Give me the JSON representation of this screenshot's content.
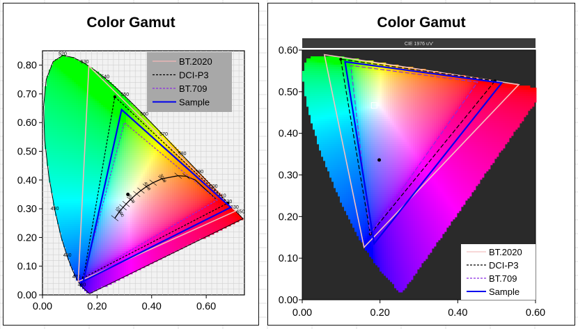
{
  "chart_data": [
    {
      "type": "scatter",
      "title": "Color Gamut",
      "xlim": [
        0,
        0.74
      ],
      "ylim": [
        0,
        0.85
      ],
      "x_ticks": [
        "0.00",
        "0.20",
        "0.40",
        "0.60"
      ],
      "y_ticks": [
        "0.00",
        "0.10",
        "0.20",
        "0.30",
        "0.40",
        "0.50",
        "0.60",
        "0.70",
        "0.80"
      ],
      "x_tick_values": [
        0,
        0.2,
        0.4,
        0.6
      ],
      "y_tick_values": [
        0,
        0.1,
        0.2,
        0.3,
        0.4,
        0.5,
        0.6,
        0.7,
        0.8
      ],
      "legend_position": "top-right",
      "grid": true,
      "series": [
        {
          "name": "BT.2020",
          "color": "#f4b8b8",
          "style": "solid",
          "points": [
            [
              0.708,
              0.292
            ],
            [
              0.17,
              0.797
            ],
            [
              0.131,
              0.046
            ]
          ]
        },
        {
          "name": "DCI-P3",
          "color": "#000000",
          "style": "dashed",
          "points": [
            [
              0.68,
              0.32
            ],
            [
              0.265,
              0.69
            ],
            [
              0.15,
              0.06
            ]
          ]
        },
        {
          "name": "BT.709",
          "color": "#8a2be2",
          "style": "dashed",
          "points": [
            [
              0.64,
              0.33
            ],
            [
              0.3,
              0.6
            ],
            [
              0.15,
              0.06
            ]
          ]
        },
        {
          "name": "Sample",
          "color": "#0000ee",
          "style": "solid",
          "points": [
            [
              0.69,
              0.305
            ],
            [
              0.29,
              0.645
            ],
            [
              0.15,
              0.048
            ]
          ]
        }
      ],
      "white_point": [
        0.313,
        0.35
      ],
      "wavelength_labels": [
        {
          "text": "460",
          "x": 0.144,
          "y": 0.03
        },
        {
          "text": "470",
          "x": 0.124,
          "y": 0.058
        },
        {
          "text": "480",
          "x": 0.091,
          "y": 0.133
        },
        {
          "text": "490",
          "x": 0.045,
          "y": 0.295
        },
        {
          "text": "520",
          "x": 0.074,
          "y": 0.834
        },
        {
          "text": "530",
          "x": 0.155,
          "y": 0.806
        },
        {
          "text": "540",
          "x": 0.23,
          "y": 0.754
        },
        {
          "text": "550",
          "x": 0.302,
          "y": 0.692
        },
        {
          "text": "560",
          "x": 0.373,
          "y": 0.625
        },
        {
          "text": "570",
          "x": 0.444,
          "y": 0.555
        },
        {
          "text": "580",
          "x": 0.512,
          "y": 0.487
        },
        {
          "text": "590",
          "x": 0.575,
          "y": 0.424
        },
        {
          "text": "600",
          "x": 0.627,
          "y": 0.373
        },
        {
          "text": "610",
          "x": 0.658,
          "y": 0.34
        },
        {
          "text": "620",
          "x": 0.68,
          "y": 0.32
        },
        {
          "text": "630",
          "x": 0.704,
          "y": 0.3
        },
        {
          "text": "650",
          "x": 0.726,
          "y": 0.285
        }
      ],
      "cct_labels": [
        {
          "text": "3000",
          "x": 0.437,
          "y": 0.404
        },
        {
          "text": "4000",
          "x": 0.38,
          "y": 0.377
        },
        {
          "text": "6000",
          "x": 0.322,
          "y": 0.332
        },
        {
          "text": "10000",
          "x": 0.28,
          "y": 0.288
        }
      ]
    },
    {
      "type": "scatter",
      "title": "Color Gamut",
      "subtitle": "CIE 1976 u'v'",
      "xlim": [
        0,
        0.6
      ],
      "ylim": [
        0,
        0.6
      ],
      "x_ticks": [
        "0.00",
        "0.20",
        "0.40",
        "0.60"
      ],
      "y_ticks": [
        "0.00",
        "0.10",
        "0.20",
        "0.30",
        "0.40",
        "0.50",
        "0.60"
      ],
      "x_tick_values": [
        0,
        0.2,
        0.4,
        0.6
      ],
      "y_tick_values": [
        0,
        0.1,
        0.2,
        0.3,
        0.4,
        0.5,
        0.6
      ],
      "legend_position": "bottom-right",
      "grid": false,
      "series": [
        {
          "name": "BT.2020",
          "color": "#f4c0c0",
          "style": "solid",
          "points": [
            [
              0.557,
              0.517
            ],
            [
              0.057,
              0.589
            ],
            [
              0.159,
              0.126
            ]
          ]
        },
        {
          "name": "DCI-P3",
          "color": "#000000",
          "style": "dashed",
          "points": [
            [
              0.496,
              0.526
            ],
            [
              0.099,
              0.578
            ],
            [
              0.175,
              0.158
            ]
          ]
        },
        {
          "name": "BT.709",
          "color": "#8a2be2",
          "style": "dashed",
          "points": [
            [
              0.451,
              0.523
            ],
            [
              0.125,
              0.563
            ],
            [
              0.175,
              0.158
            ]
          ]
        },
        {
          "name": "Sample",
          "color": "#0000ee",
          "style": "solid",
          "points": [
            [
              0.513,
              0.521
            ],
            [
              0.11,
              0.572
            ],
            [
              0.185,
              0.135
            ]
          ]
        }
      ],
      "white_point": [
        0.198,
        0.336
      ]
    }
  ]
}
